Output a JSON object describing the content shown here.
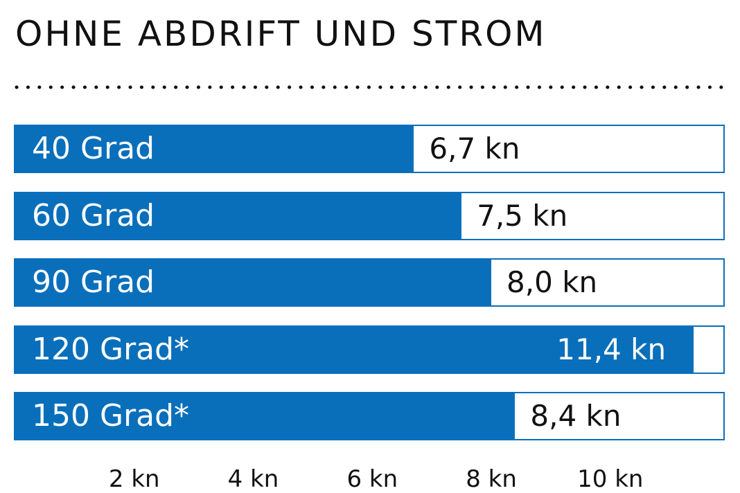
{
  "chart_data": {
    "type": "bar",
    "orientation": "horizontal",
    "title": "OHNE ABDRIFT UND STROM",
    "categories": [
      "40 Grad",
      "60 Grad",
      "90 Grad",
      "120 Grad*",
      "150 Grad*"
    ],
    "values": [
      6.7,
      7.5,
      8.0,
      11.4,
      8.4
    ],
    "value_labels": [
      "6,7 kn",
      "7,5 kn",
      "8,0 kn",
      "11,4 kn",
      "8,4 kn"
    ],
    "x_ticks": [
      2,
      4,
      6,
      8,
      10
    ],
    "x_tick_labels": [
      "2 kn",
      "4 kn",
      "6 kn",
      "8 kn",
      "10 kn"
    ],
    "xlim": [
      0,
      11.9
    ],
    "grid": false,
    "legend": "none"
  },
  "colors": {
    "bar": "#0a6fba",
    "value_text_inside": "#ffffff",
    "value_text_outside": "#111111"
  }
}
